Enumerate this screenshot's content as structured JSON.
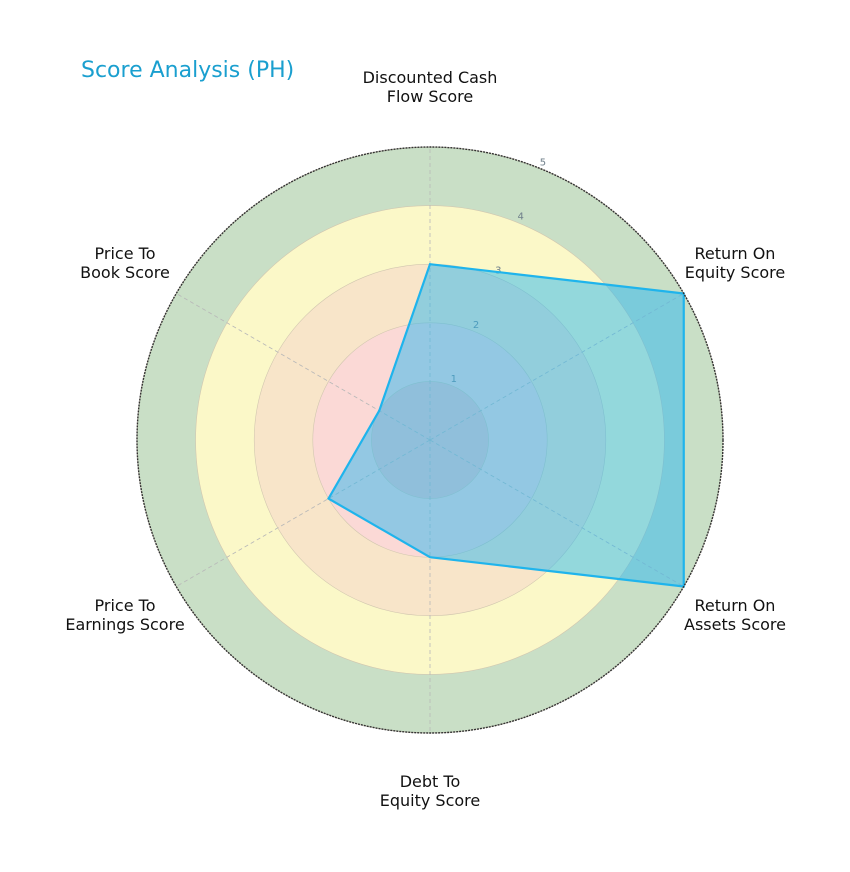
{
  "title": "Score Analysis (PH)",
  "colors": {
    "title": "#1a9fcf",
    "band_0_1": "#f4c6c6",
    "band_1_2": "#fbd9d6",
    "band_2_3": "#f8e5c9",
    "band_3_4": "#fbf8c8",
    "band_4_5": "#c9dfc6",
    "polygon_fill": "#2cb8ef",
    "polygon_stroke": "#1fb4ec",
    "outer_ring": "#333333"
  },
  "chart_data": {
    "type": "radar",
    "title": "Score Analysis (PH)",
    "categories": [
      "Discounted Cash Flow Score",
      "Return On Equity Score",
      "Return On Assets Score",
      "Debt To Equity Score",
      "Price To Earnings Score",
      "Price To Book Score"
    ],
    "label_lines": [
      [
        "Discounted Cash",
        "Flow Score"
      ],
      [
        "Return On",
        "Equity Score"
      ],
      [
        "Return On",
        "Assets Score"
      ],
      [
        "Debt To",
        "Equity Score"
      ],
      [
        "Price To",
        "Earnings Score"
      ],
      [
        "Price To",
        "Book Score"
      ]
    ],
    "series": [
      {
        "name": "PH",
        "values": [
          3,
          5,
          5,
          2,
          2,
          1
        ]
      }
    ],
    "rlim": [
      0,
      5
    ],
    "r_ticks": [
      1,
      2,
      3,
      4,
      5
    ],
    "grid": true,
    "legend": false
  }
}
